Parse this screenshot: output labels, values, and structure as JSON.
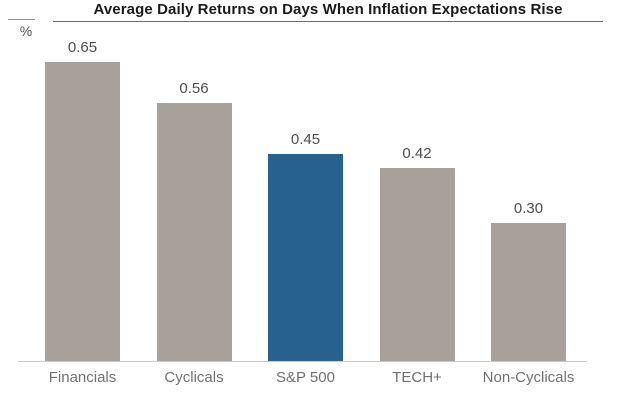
{
  "chart_data": {
    "type": "bar",
    "title": "Average Daily Returns on Days When Inflation Expectations Rise",
    "ylabel": "%",
    "categories": [
      "Financials",
      "Cyclicals",
      "S&P 500",
      "TECH+",
      "Non-Cyclicals"
    ],
    "values": [
      0.65,
      0.56,
      0.45,
      0.42,
      0.3
    ],
    "value_labels": [
      "0.65",
      "0.56",
      "0.45",
      "0.42",
      "0.30"
    ],
    "highlight_index": 2,
    "highlighted_category": "S&P 500",
    "bar_color": "#a8a09a",
    "highlight_color": "#26618f",
    "title_color": "#1a1a1a",
    "label_color": "#4d4d4d",
    "category_label_color": "#707070",
    "baseline_color": "#c9c9c9",
    "ylim": [
      0,
      0.78
    ],
    "grid": false,
    "legend_position": "none"
  }
}
